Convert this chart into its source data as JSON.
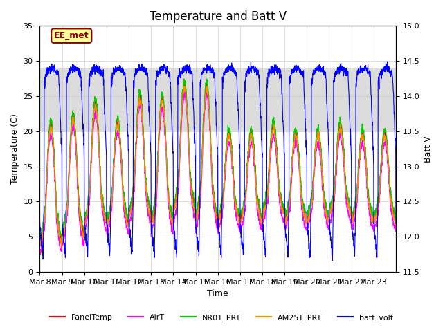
{
  "title": "Temperature and Batt V",
  "xlabel": "Time",
  "ylabel_left": "Temperature (C)",
  "ylabel_right": "Batt V",
  "ylim_left": [
    0,
    35
  ],
  "ylim_right": [
    11.5,
    15.0
  ],
  "yticks_left": [
    0,
    5,
    10,
    15,
    20,
    25,
    30,
    35
  ],
  "yticks_right": [
    11.5,
    12.0,
    12.5,
    13.0,
    13.5,
    14.0,
    14.5,
    15.0
  ],
  "xtick_labels": [
    "Mar 8",
    "Mar 9",
    "Mar 10",
    "Mar 11",
    "Mar 12",
    "Mar 13",
    "Mar 14",
    "Mar 15",
    "Mar 16",
    "Mar 17",
    "Mar 18",
    "Mar 19",
    "Mar 20",
    "Mar 21",
    "Mar 22",
    "Mar 23"
  ],
  "n_days": 16,
  "annotation_text": "EE_met",
  "annotation_color": "#8B0000",
  "annotation_bg": "#FFFF99",
  "legend_labels": [
    "PanelTemp",
    "AirT",
    "NR01_PRT",
    "AM25T_PRT",
    "batt_volt"
  ],
  "legend_colors": [
    "#FF0000",
    "#FF00FF",
    "#00CC00",
    "#FF8800",
    "#0000FF"
  ],
  "shaded_region": [
    20,
    29
  ],
  "shaded_color": "#DCDCDC",
  "background_color": "#FFFFFF",
  "grid_color": "#CCCCCC",
  "title_fontsize": 12,
  "label_fontsize": 9,
  "tick_fontsize": 8
}
